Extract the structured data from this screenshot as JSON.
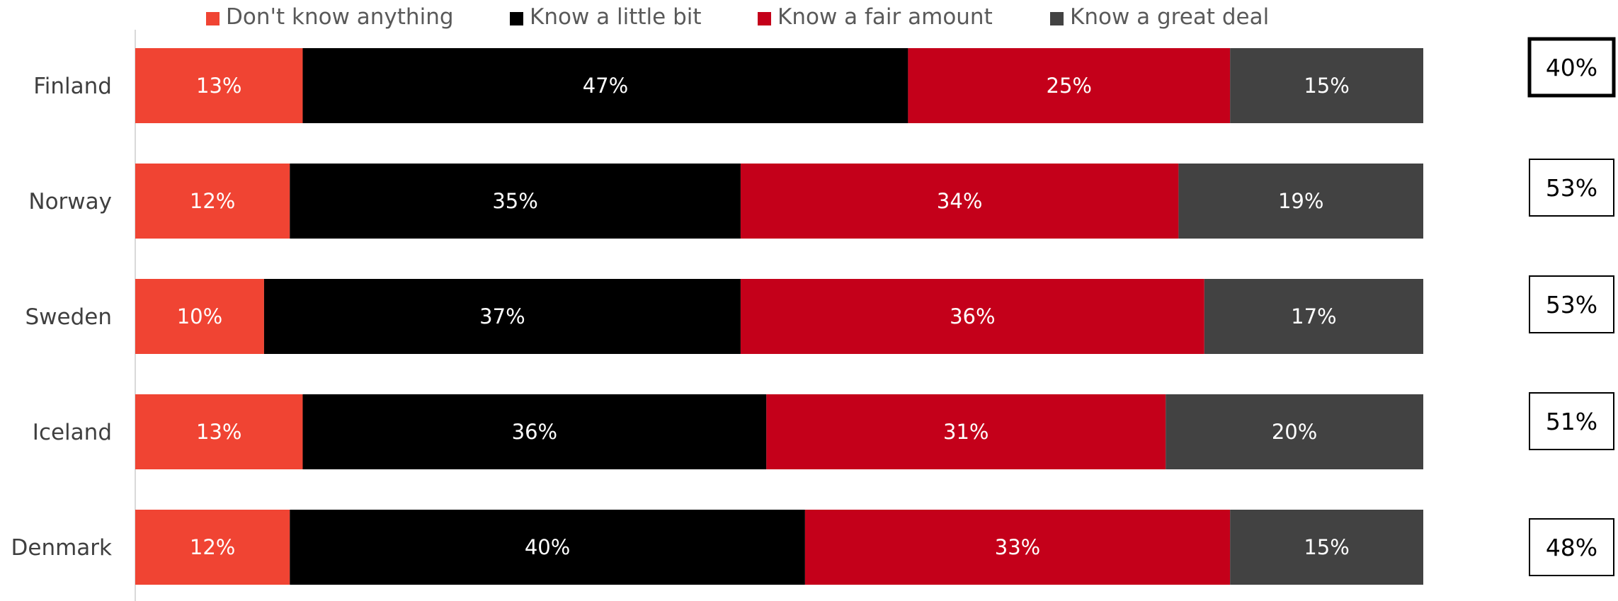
{
  "chart_data": {
    "type": "bar",
    "orientation": "horizontal",
    "stacked": true,
    "categories": [
      "Finland",
      "Norway",
      "Sweden",
      "Iceland",
      "Denmark"
    ],
    "series": [
      {
        "name": "Don't know anything",
        "color": "#f04433",
        "values": [
          13,
          12,
          10,
          13,
          12
        ],
        "labels": [
          "13%",
          "12%",
          "10%",
          "13%",
          "12%"
        ]
      },
      {
        "name": "Know a little bit",
        "color": "#000000",
        "values": [
          47,
          35,
          37,
          36,
          40
        ],
        "labels": [
          "47%",
          "35%",
          "37%",
          "36%",
          "40%"
        ]
      },
      {
        "name": "Know a fair amount",
        "color": "#c4001a",
        "values": [
          25,
          34,
          36,
          31,
          33
        ],
        "labels": [
          "25%",
          "34%",
          "36%",
          "31%",
          "33%"
        ]
      },
      {
        "name": "Know a great deal",
        "color": "#424242",
        "values": [
          15,
          19,
          17,
          20,
          15
        ],
        "labels": [
          "15%",
          "19%",
          "17%",
          "20%",
          "15%"
        ]
      }
    ],
    "xlim": [
      0,
      100
    ],
    "legend_position": "top",
    "grid": false,
    "data_label_color": "#ffffff",
    "category_label_color": "#3f3f3f",
    "summary_boxes": {
      "values": [
        "40%",
        "53%",
        "53%",
        "51%",
        "48%"
      ],
      "highlighted": "Finland"
    }
  }
}
